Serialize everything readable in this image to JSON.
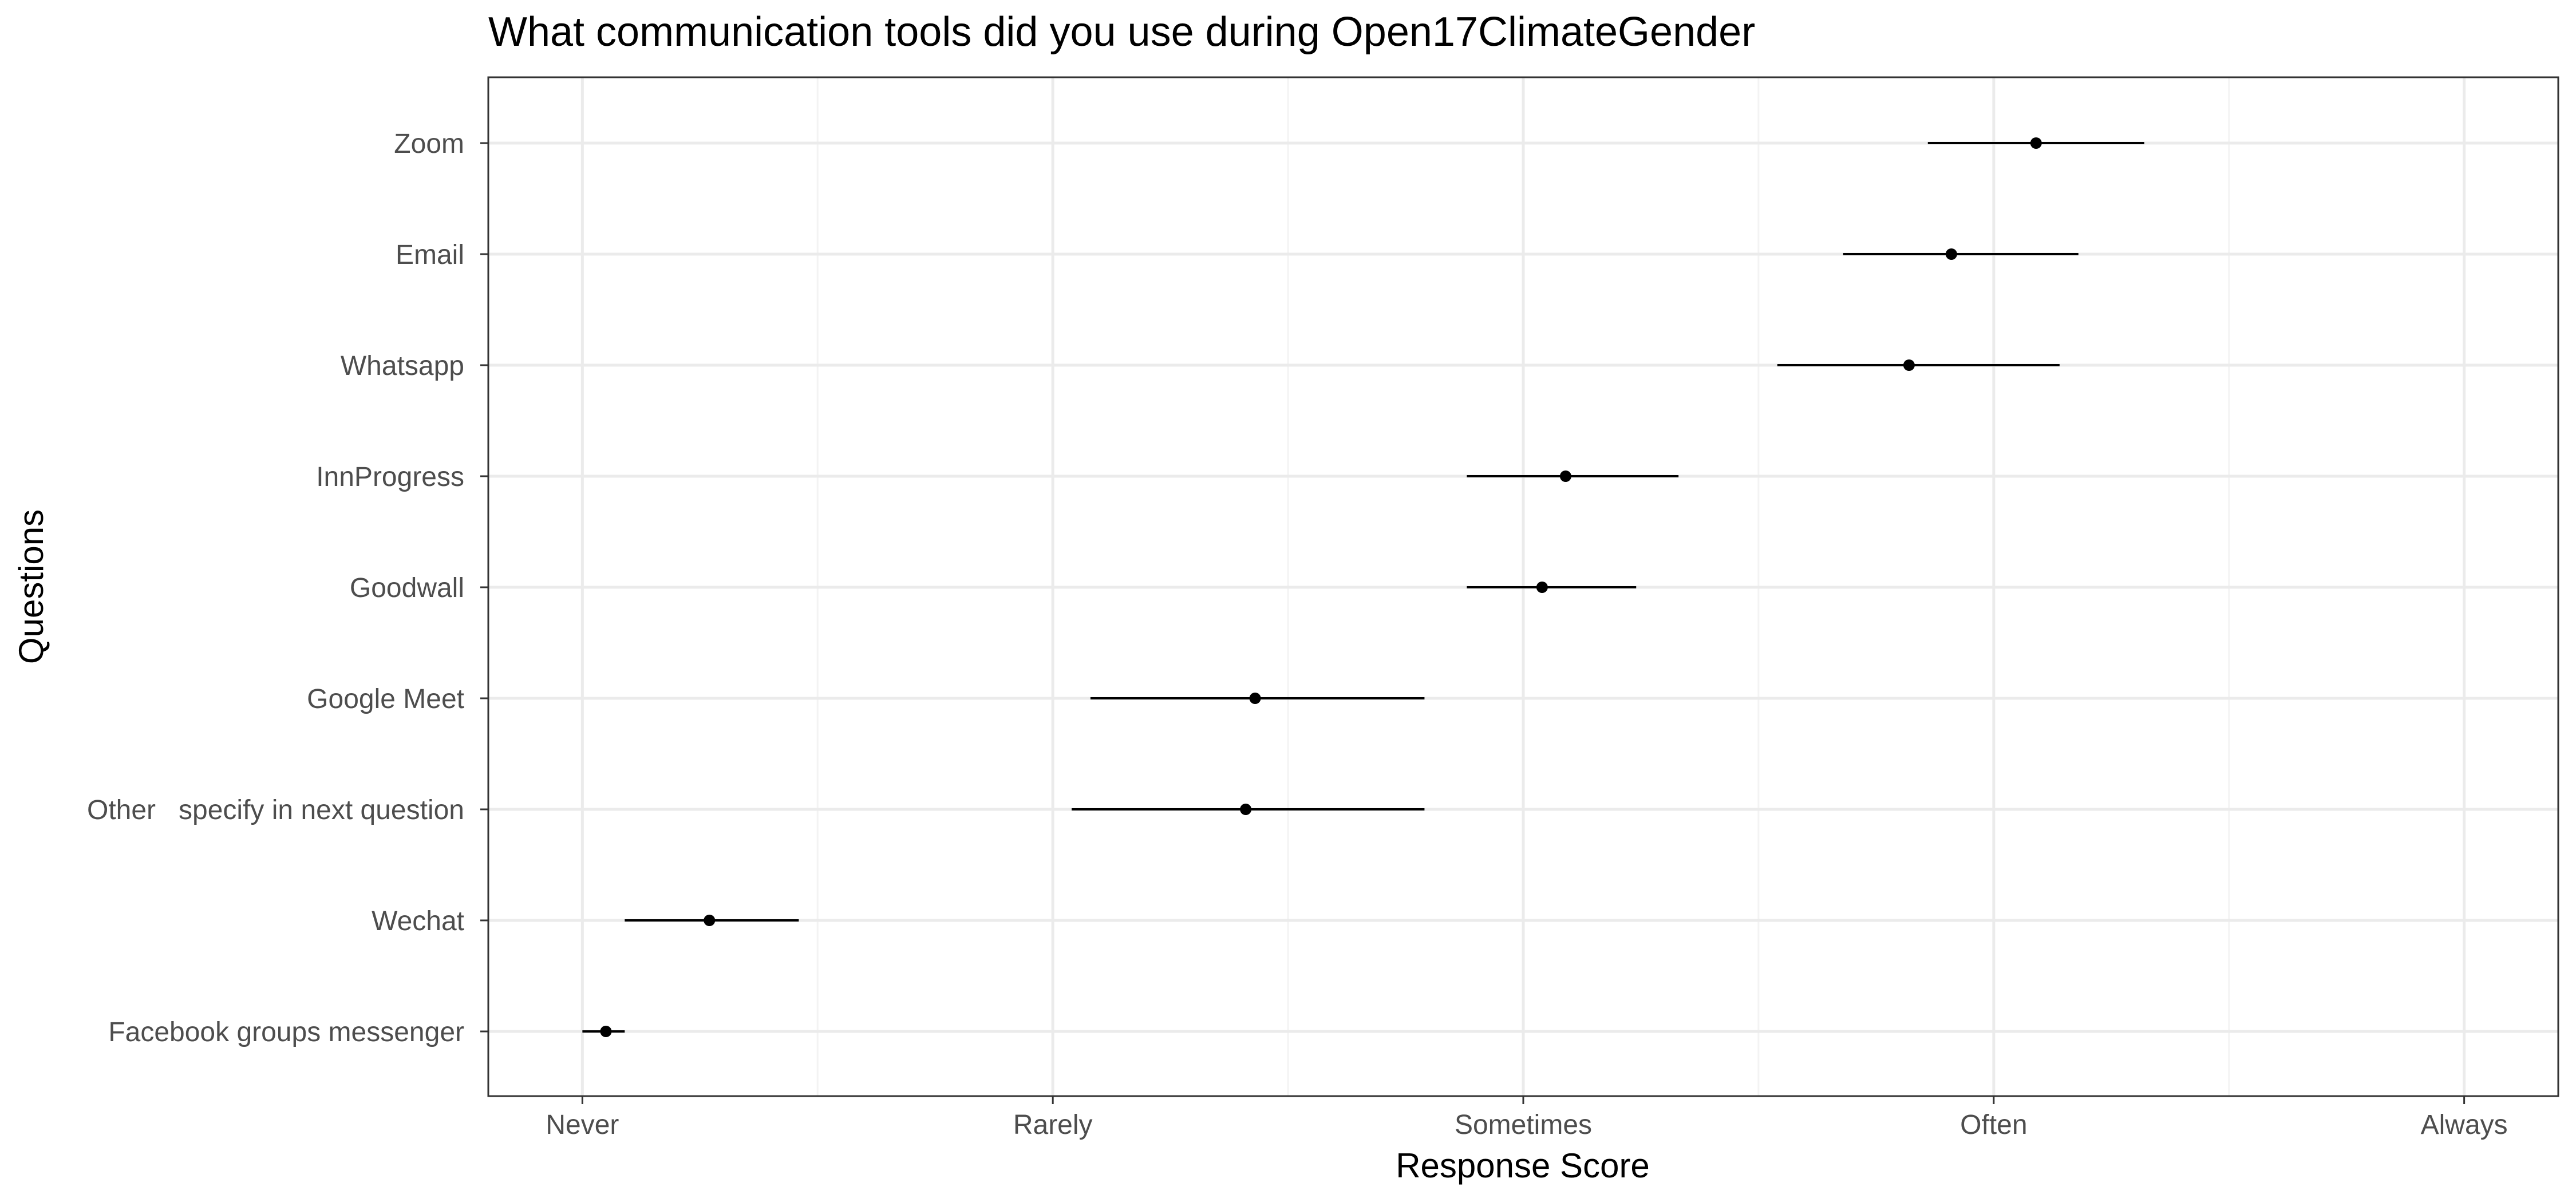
{
  "chart_data": {
    "type": "scatter",
    "title": "What communication tools did you use during Open17ClimateGender",
    "xlabel": "Response Score",
    "ylabel": "Questions",
    "x_tick_labels": [
      "Never",
      "Rarely",
      "Sometimes",
      "Often",
      "Always"
    ],
    "xlim": [
      0.8,
      5.2
    ],
    "grid": true,
    "categories": [
      "Zoom",
      "Email",
      "Whatsapp",
      "InnProgress",
      "Goodwall",
      "Google Meet",
      "Other   specify in next question",
      "Wechat",
      "Facebook groups messenger"
    ],
    "series": [
      {
        "mean": [
          4.09,
          3.91,
          3.82,
          3.09,
          3.04,
          2.43,
          2.41,
          1.27,
          1.05
        ],
        "lower": [
          3.86,
          3.68,
          3.54,
          2.88,
          2.88,
          2.08,
          2.04,
          1.09,
          1.0
        ],
        "upper": [
          4.32,
          4.18,
          4.14,
          3.33,
          3.24,
          2.79,
          2.79,
          1.46,
          1.09
        ]
      }
    ]
  },
  "colors": {
    "point": "#000000",
    "errorbar": "#000000",
    "grid_major": "#ebebeb",
    "grid_minor": "#f3f3f3",
    "panel_border": "#333333",
    "axis_text": "#4d4d4d"
  }
}
